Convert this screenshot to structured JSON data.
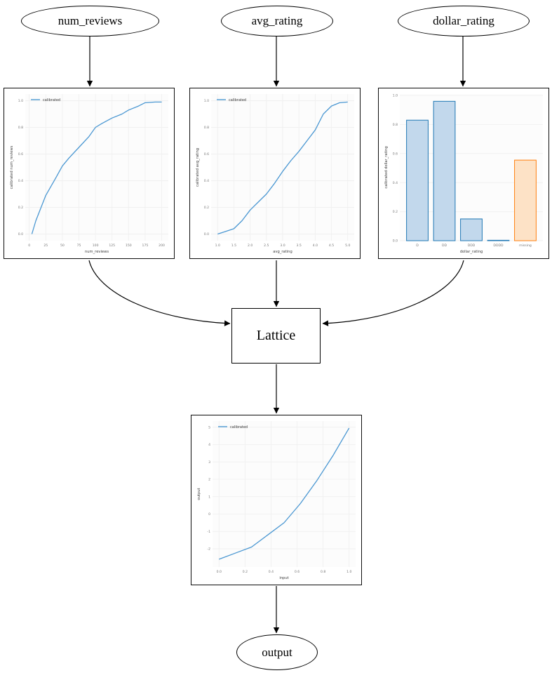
{
  "nodes": {
    "num_reviews": {
      "label": "num_reviews"
    },
    "avg_rating": {
      "label": "avg_rating"
    },
    "dollar_rating": {
      "label": "dollar_rating"
    },
    "lattice": {
      "label": "Lattice"
    },
    "output": {
      "label": "output"
    }
  },
  "colors": {
    "line": "#4a97d2",
    "bar_blue_fill": "#c2d8ec",
    "bar_blue_edge": "#1f77b4",
    "bar_orange_fill": "#fde2c6",
    "bar_orange_edge": "#ff7f0e",
    "grid": "#f0f0f0",
    "plot_bg": "#fcfcfc",
    "tick_text": "#777777",
    "label_text": "#3c3c3c",
    "edge": "#000000"
  },
  "chart_data": [
    {
      "id": "calibrator-num-reviews",
      "type": "line",
      "legend": "calibrated",
      "xlabel": "num_reviews",
      "ylabel": "calibrated num_reviews",
      "x": [
        4,
        10,
        25,
        40,
        50,
        60,
        75,
        90,
        100,
        110,
        125,
        140,
        150,
        165,
        175,
        190,
        200
      ],
      "y": [
        0.0,
        0.1,
        0.29,
        0.42,
        0.51,
        0.57,
        0.65,
        0.73,
        0.8,
        0.83,
        0.87,
        0.9,
        0.93,
        0.96,
        0.985,
        0.99,
        0.99
      ],
      "xlim": [
        -6,
        210
      ],
      "ylim": [
        -0.05,
        1.05
      ],
      "xticks": {
        "pos": [
          0,
          25,
          50,
          75,
          100,
          125,
          150,
          175,
          200
        ],
        "labels": [
          "0",
          "25",
          "50",
          "75",
          "100",
          "125",
          "150",
          "175",
          "200"
        ]
      },
      "yticks": {
        "pos": [
          0,
          0.2,
          0.4,
          0.6,
          0.8,
          1.0
        ],
        "labels": [
          "0.0",
          "0.2",
          "0.4",
          "0.6",
          "0.8",
          "1.0"
        ]
      }
    },
    {
      "id": "calibrator-avg-rating",
      "type": "line",
      "legend": "calibrated",
      "xlabel": "avg_rating",
      "ylabel": "calibrated avg_rating",
      "x": [
        1.0,
        1.25,
        1.5,
        1.75,
        2.0,
        2.25,
        2.5,
        2.75,
        3.0,
        3.25,
        3.5,
        3.75,
        4.0,
        4.25,
        4.5,
        4.75,
        5.0
      ],
      "y": [
        0.0,
        0.02,
        0.04,
        0.1,
        0.18,
        0.24,
        0.3,
        0.38,
        0.47,
        0.55,
        0.62,
        0.7,
        0.78,
        0.9,
        0.96,
        0.985,
        0.99
      ],
      "xlim": [
        0.8,
        5.2
      ],
      "ylim": [
        -0.05,
        1.05
      ],
      "xticks": {
        "pos": [
          1.0,
          1.5,
          2.0,
          2.5,
          3.0,
          3.5,
          4.0,
          4.5,
          5.0
        ],
        "labels": [
          "1.0",
          "1.5",
          "2.0",
          "2.5",
          "3.0",
          "3.5",
          "4.0",
          "4.5",
          "5.0"
        ]
      },
      "yticks": {
        "pos": [
          0,
          0.2,
          0.4,
          0.6,
          0.8,
          1.0
        ],
        "labels": [
          "0.0",
          "0.2",
          "0.4",
          "0.6",
          "0.8",
          "1.0"
        ]
      }
    },
    {
      "id": "calibrator-dollar-rating",
      "type": "bar",
      "xlabel": "dollar_rating",
      "ylabel": "calibrated dollar_rating",
      "categories": [
        "D",
        "DD",
        "DDD",
        "DDDD",
        "missing"
      ],
      "values": [
        0.83,
        0.96,
        0.15,
        0.003,
        0.555
      ],
      "bar_fills": [
        "#c2d8ec",
        "#c2d8ec",
        "#c2d8ec",
        "#c2d8ec",
        "#fde2c6"
      ],
      "bar_edges": [
        "#1f77b4",
        "#1f77b4",
        "#1f77b4",
        "#1f77b4",
        "#ff7f0e"
      ],
      "xlim": [
        -0.65,
        4.65
      ],
      "ylim": [
        0,
        1.01
      ],
      "xticks": {
        "pos": [
          0,
          1,
          2,
          3,
          4
        ],
        "labels": [
          "D",
          "DD",
          "DDD",
          "DDDD",
          "missing"
        ]
      },
      "yticks": {
        "pos": [
          0,
          0.2,
          0.4,
          0.6,
          0.8,
          1.0
        ],
        "labels": [
          "0.0",
          "0.2",
          "0.4",
          "0.6",
          "0.8",
          "1.0"
        ]
      }
    },
    {
      "id": "output-calibrator",
      "type": "line",
      "legend": "calibrated",
      "xlabel": "input",
      "ylabel": "output",
      "x": [
        0.0,
        0.125,
        0.25,
        0.375,
        0.5,
        0.625,
        0.75,
        0.875,
        1.0
      ],
      "y": [
        -2.6,
        -2.25,
        -1.9,
        -1.2,
        -0.5,
        0.6,
        1.9,
        3.35,
        4.95
      ],
      "xlim": [
        -0.05,
        1.05
      ],
      "ylim": [
        -3.05,
        5.35
      ],
      "xticks": {
        "pos": [
          0.0,
          0.2,
          0.4,
          0.6,
          0.8,
          1.0
        ],
        "labels": [
          "0.0",
          "0.2",
          "0.4",
          "0.6",
          "0.8",
          "1.0"
        ]
      },
      "yticks": {
        "pos": [
          -2,
          -1,
          0,
          1,
          2,
          3,
          4,
          5
        ],
        "labels": [
          "-2",
          "-1",
          "0",
          "1",
          "2",
          "3",
          "4",
          "5"
        ]
      }
    }
  ]
}
